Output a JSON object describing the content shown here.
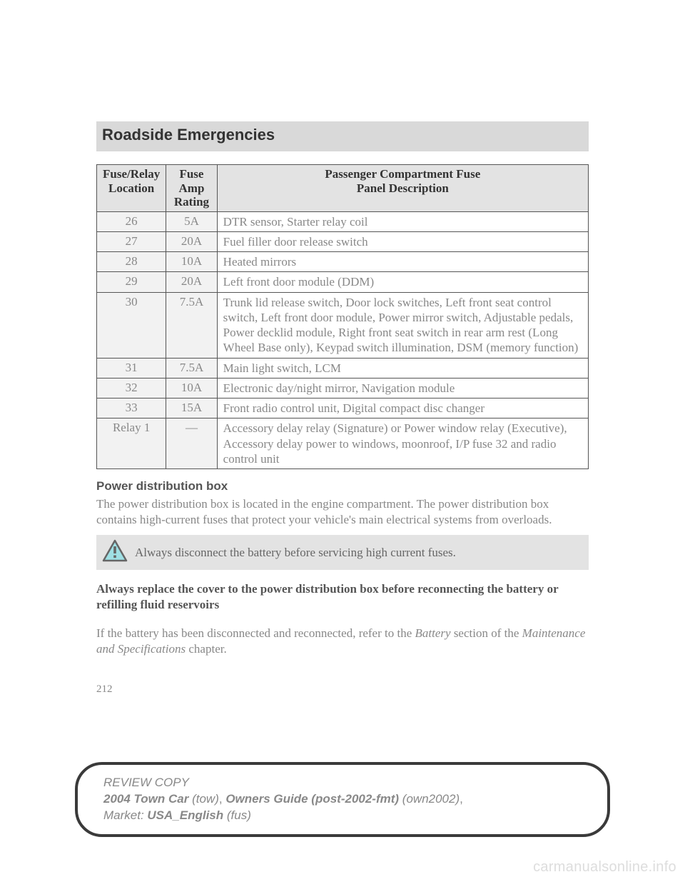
{
  "header": {
    "title": "Roadside Emergencies"
  },
  "table": {
    "columns": [
      {
        "l1": "Fuse/Relay",
        "l2": "Location"
      },
      {
        "l1": "Fuse Amp",
        "l2": "Rating"
      },
      {
        "l1": "Passenger Compartment Fuse",
        "l2": "Panel Description"
      }
    ],
    "rows": [
      {
        "loc": "26",
        "amp": "5A",
        "desc": "DTR sensor, Starter relay coil"
      },
      {
        "loc": "27",
        "amp": "20A",
        "desc": "Fuel filler door release switch"
      },
      {
        "loc": "28",
        "amp": "10A",
        "desc": "Heated mirrors"
      },
      {
        "loc": "29",
        "amp": "20A",
        "desc": "Left front door module (DDM)"
      },
      {
        "loc": "30",
        "amp": "7.5A",
        "desc": "Trunk lid release switch, Door lock switches, Left front seat control switch, Left front door module, Power mirror switch, Adjustable pedals, Power decklid module, Right front seat switch in rear arm rest (Long Wheel Base only), Keypad switch illumination, DSM (memory function)"
      },
      {
        "loc": "31",
        "amp": "7.5A",
        "desc": "Main light switch, LCM"
      },
      {
        "loc": "32",
        "amp": "10A",
        "desc": "Electronic day/night mirror, Navigation module"
      },
      {
        "loc": "33",
        "amp": "15A",
        "desc": "Front radio control unit, Digital compact disc changer"
      },
      {
        "loc": "Relay 1",
        "amp": "—",
        "desc": "Accessory delay relay (Signature) or Power window relay (Executive), Accessory delay power to windows, moonroof, I/P fuse 32 and radio control unit"
      }
    ]
  },
  "subhead": "Power distribution box",
  "para1": "The power distribution box is located in the engine compartment. The power distribution box contains high-current fuses that protect your vehicle's main electrical systems from overloads.",
  "warning": "Always disconnect the battery before servicing high current fuses.",
  "boldblock": "Always replace the cover to the power distribution box before reconnecting the battery or refilling fluid reservoirs",
  "ref": {
    "pre": "If the battery has been disconnected and reconnected, refer to the ",
    "i1": "Battery",
    "mid": " section of the ",
    "i2": "Maintenance and Specifications",
    "post": " chapter."
  },
  "pageNumber": "212",
  "footer": {
    "line1": "REVIEW COPY",
    "l2_bi": "2004 Town Car",
    "l2_i1": " (tow)",
    "l2_sep": ", ",
    "l2_bi2": "Owners Guide (post-2002-fmt)",
    "l2_i2": " (own2002)",
    "l2_end": ",",
    "l3_pre": "Market: ",
    "l3_bi": "USA_English",
    "l3_i": " (fus)"
  },
  "watermark": "carmanualsonline.info",
  "style": {
    "headerBg": "#d9d9d9",
    "thBg": "#e3e3e3",
    "mutedCellBg": "#f2f2f2",
    "mutedText": "#888888",
    "borderColor": "#555555",
    "warnBg": "#e3e3e3",
    "iconStroke": "#666666",
    "iconFill": "#9fe0e4",
    "footerBorder": "#3a3a3a"
  }
}
